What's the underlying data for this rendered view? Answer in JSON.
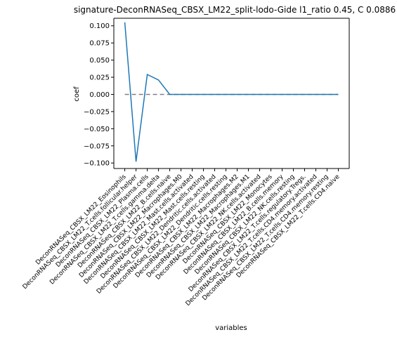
{
  "chart_data": {
    "type": "line",
    "title": "signature-DeconRNASeq_CBSX_LM22_split-lodo-Gide l1_ratio 0.45, C 0.0886",
    "xlabel": "variables",
    "ylabel": "coef",
    "ylim": [
      -0.108,
      0.111
    ],
    "yticks": [
      0.1,
      0.075,
      0.05,
      0.025,
      0.0,
      -0.025,
      -0.05,
      -0.075,
      -0.1
    ],
    "ytick_labels": [
      "0.100",
      "0.075",
      "0.050",
      "0.025",
      "0.000",
      "−0.025",
      "−0.050",
      "−0.075",
      "−0.100"
    ],
    "categories": [
      "DeconRNASeq_CBSX_LM22_Eosinophils",
      "DeconRNASeq_CBSX_LM22_T.cells.follicular.helper",
      "DeconRNASeq_CBSX_LM22_Plasma.cells",
      "DeconRNASeq_CBSX_LM22_T.cells.gamma.delta",
      "DeconRNASeq_CBSX_LM22_B.cells.naive",
      "DeconRNASeq_CBSX_LM22_Macrophages.M0",
      "DeconRNASeq_CBSX_LM22_Mast.cells.activated",
      "DeconRNASeq_CBSX_LM22_Mast.cells.resting",
      "DeconRNASeq_CBSX_LM22_Dendritic.cells.activated",
      "DeconRNASeq_CBSX_LM22_Dendritic.cells.resting",
      "DeconRNASeq_CBSX_LM22_Macrophages.M2",
      "DeconRNASeq_CBSX_LM22_Macrophages.M1",
      "DeconRNASeq_CBSX_LM22_NK.cells.activated",
      "DeconRNASeq_CBSX_LM22_Monocytes",
      "DeconRNASeq_CBSX_LM22_B.cells.memory",
      "DeconRNASeq_CBSX_LM22_NK.cells.resting",
      "DeconRNASeq_CBSX_LM22_T.cells.regulatory.Tregs.",
      "DeconRNASeq_CBSX_LM22_T.cells.CD4.memory.activated",
      "DeconRNASeq_CBSX_LM22_T.cells.CD4.memory.resting",
      "DeconRNASeq_CBSX_LM22_T.cells.CD4.naive"
    ],
    "values": [
      0.105,
      -0.098,
      0.029,
      0.021,
      0.0,
      0.0,
      0.0,
      0.0,
      0.0,
      0.0,
      0.0,
      0.0,
      0.0,
      0.0,
      0.0,
      0.0,
      0.0,
      0.0,
      0.0,
      0.0
    ],
    "reference_line": {
      "y": 0.0,
      "style": "dashed",
      "color": "#808080"
    },
    "line_color": "#1f77b4",
    "grid": false,
    "legend": "none"
  }
}
